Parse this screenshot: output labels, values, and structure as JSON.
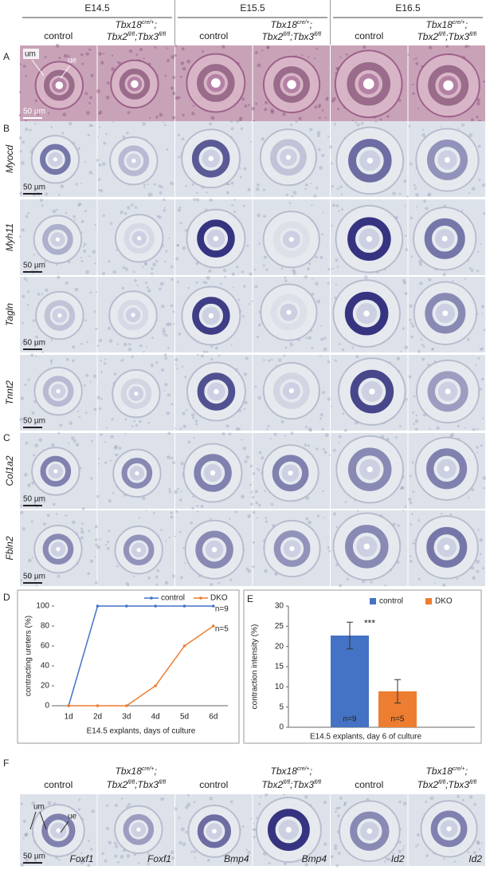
{
  "header": {
    "stages": [
      "E14.5",
      "E15.5",
      "E16.5"
    ],
    "control": "control",
    "genotype": {
      "line1": [
        {
          "gene": "Tbx18",
          "sup": "cre/+"
        },
        {
          "gene": ";"
        }
      ],
      "line2": [
        {
          "gene": "Tbx2",
          "sup": "fl/fl"
        },
        {
          "gene": ";Tbx3",
          "sup": "fl/fl"
        }
      ]
    }
  },
  "panels": {
    "letters": [
      "A",
      "B",
      "C",
      "D",
      "E",
      "F"
    ],
    "rows": [
      "Myocd",
      "Myh11",
      "Tagln",
      "Tnnt2",
      "Col1a2",
      "Fbln2"
    ],
    "scale_bar": "50 µm",
    "um": "um",
    "ue": "ue"
  },
  "panel_f": {
    "labels": [
      "Foxf1",
      "Foxf1",
      "Bmp4",
      "Bmp4",
      "Id2",
      "Id2"
    ]
  },
  "chart_data": [
    {
      "type": "line",
      "ylabel": "contracting ureters (%)",
      "xlabel": "E14.5 explants, days of culture",
      "categories": [
        "1d",
        "2d",
        "3d",
        "4d",
        "5d",
        "6d"
      ],
      "series": [
        {
          "name": "control",
          "color": "#4472c4",
          "values": [
            0,
            100,
            100,
            100,
            100,
            100
          ]
        },
        {
          "name": "DKO",
          "color": "#ed7d31",
          "values": [
            0,
            0,
            0,
            20,
            60,
            80
          ]
        }
      ],
      "annotations": [
        "n=9",
        "n=5"
      ],
      "ylim": [
        0,
        100
      ],
      "yticks": [
        0,
        20,
        40,
        60,
        80,
        100
      ],
      "legend": "top"
    },
    {
      "type": "bar",
      "ylabel": "contraction intensity (%)",
      "xlabel": "E14.5 explants, day 6 of culture",
      "categories": [
        null
      ],
      "series": [
        {
          "name": "control",
          "color": "#4472c4",
          "values": [
            22.7
          ],
          "errors": [
            3.3
          ]
        },
        {
          "name": "DKO",
          "color": "#ed7d31",
          "values": [
            8.9
          ],
          "errors": [
            2.9
          ]
        }
      ],
      "annotations": [
        "n=9",
        "n=5",
        "***"
      ],
      "ylim": [
        0,
        30
      ],
      "yticks": [
        0,
        5,
        10,
        15,
        20,
        25,
        30
      ],
      "legend": "top-right"
    }
  ]
}
